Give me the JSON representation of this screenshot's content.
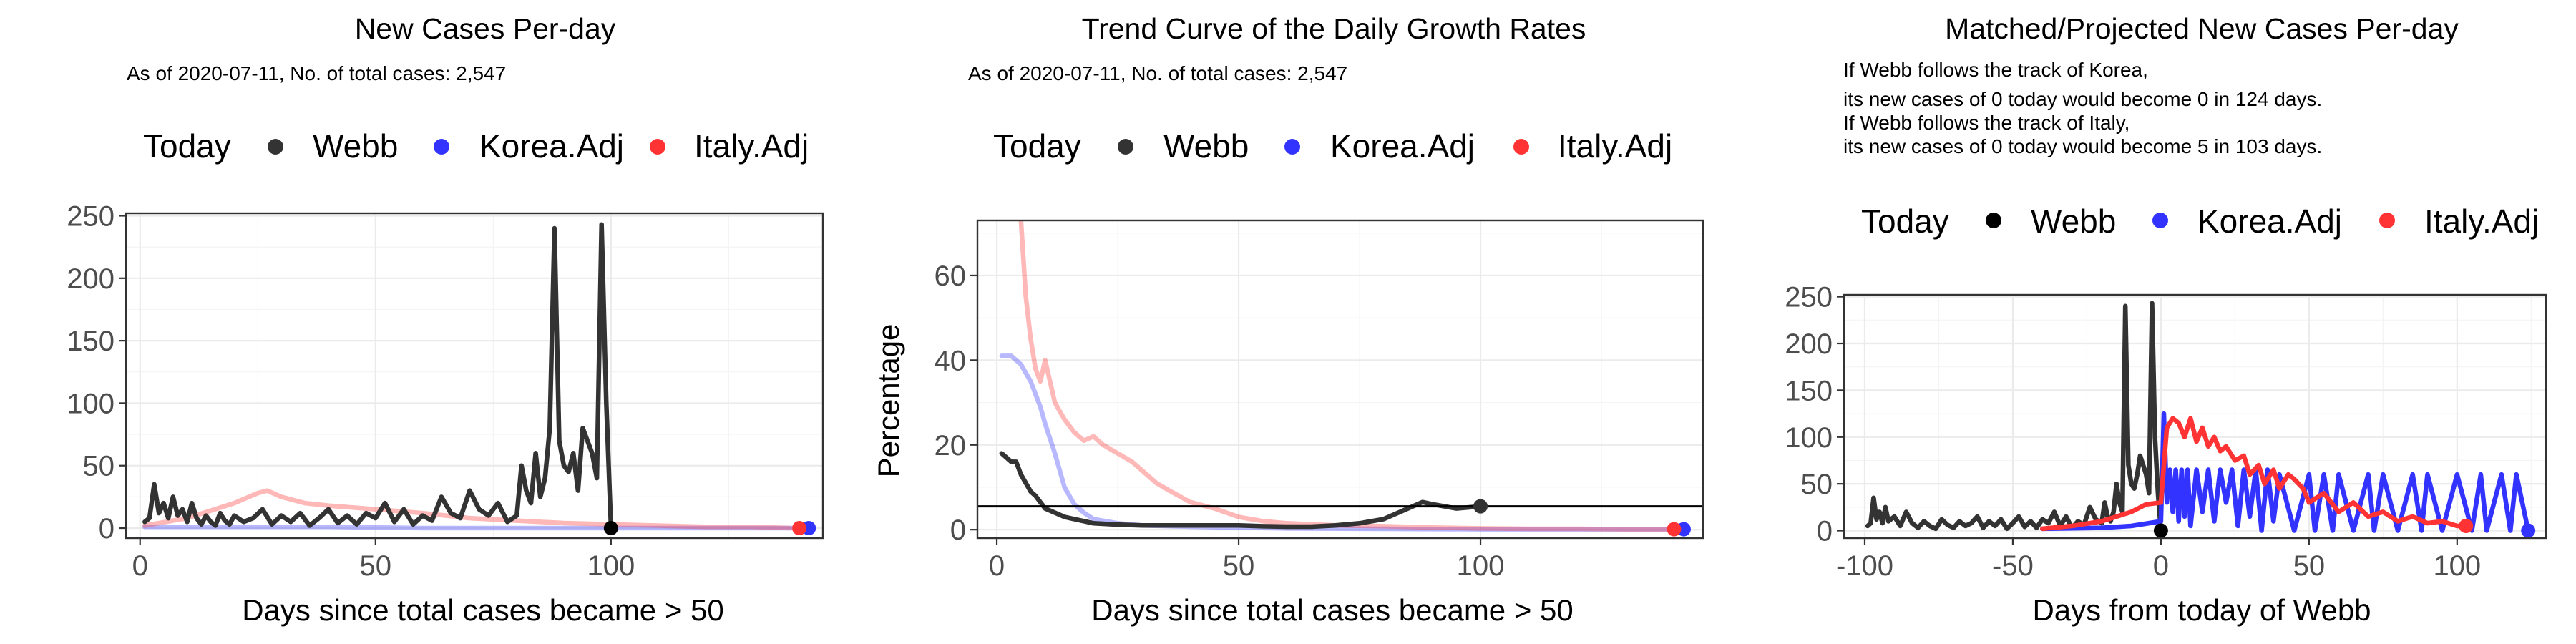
{
  "colors": {
    "webb": "#333333",
    "korea": "#3333ff",
    "italy": "#ff3333",
    "today": "#000000"
  },
  "chart_data": [
    {
      "type": "line",
      "title": "New Cases Per-day",
      "subtitle_lines": [
        "As of 2020-07-11, No. of total cases: 2,547"
      ],
      "legend_title": "Today",
      "legend": [
        "Webb",
        "Korea.Adj",
        "Italy.Adj"
      ],
      "legend_placement": "top",
      "xlabel": "Days since total cases became > 50",
      "ylabel": "",
      "xlim": [
        -3,
        145
      ],
      "ylim": [
        -8,
        252
      ],
      "x_ticks": [
        0,
        50,
        100
      ],
      "y_ticks": [
        0,
        50,
        100,
        150,
        200,
        250
      ],
      "series": [
        {
          "name": "Webb",
          "color": "#333333",
          "x": [
            1,
            2,
            3,
            4,
            5,
            6,
            7,
            8,
            9,
            10,
            11,
            12,
            13,
            14,
            15,
            16,
            17,
            18,
            19,
            20,
            22,
            24,
            26,
            28,
            30,
            32,
            34,
            36,
            38,
            40,
            42,
            44,
            46,
            48,
            50,
            52,
            54,
            56,
            58,
            60,
            62,
            64,
            66,
            68,
            70,
            72,
            74,
            76,
            78,
            80,
            81,
            82,
            83,
            84,
            85,
            86,
            87,
            88,
            89,
            90,
            91,
            92,
            93,
            94,
            95,
            96,
            97,
            98,
            99,
            100
          ],
          "y": [
            5,
            8,
            35,
            12,
            20,
            8,
            25,
            10,
            15,
            5,
            20,
            8,
            3,
            10,
            5,
            2,
            12,
            6,
            3,
            10,
            5,
            8,
            15,
            3,
            10,
            5,
            12,
            2,
            8,
            15,
            4,
            10,
            3,
            12,
            8,
            20,
            5,
            15,
            3,
            10,
            6,
            25,
            12,
            8,
            30,
            15,
            10,
            20,
            5,
            10,
            50,
            30,
            20,
            60,
            25,
            40,
            80,
            240,
            70,
            50,
            45,
            60,
            30,
            80,
            70,
            60,
            40,
            243,
            100,
            0
          ]
        },
        {
          "name": "Korea.Adj",
          "color": "#3333ff",
          "opacity": 0.35,
          "x": [
            1,
            20,
            40,
            60,
            80,
            100,
            120,
            140
          ],
          "y": [
            1,
            1,
            1,
            0,
            0,
            0,
            0,
            0
          ]
        },
        {
          "name": "Italy.Adj",
          "color": "#ff3333",
          "opacity": 0.35,
          "x": [
            1,
            10,
            20,
            25,
            27,
            30,
            35,
            40,
            50,
            60,
            70,
            80,
            90,
            100,
            110,
            120,
            130,
            138
          ],
          "y": [
            2,
            8,
            20,
            28,
            30,
            25,
            20,
            18,
            15,
            12,
            8,
            6,
            4,
            3,
            2,
            1,
            1,
            0
          ]
        }
      ],
      "today_points": [
        {
          "series": "Webb",
          "x": 100,
          "y": 0,
          "color": "#000000"
        },
        {
          "series": "Korea.Adj",
          "x": 142,
          "y": 0,
          "color": "#3333ff"
        },
        {
          "series": "Italy.Adj",
          "x": 140,
          "y": 0,
          "color": "#ff3333"
        }
      ]
    },
    {
      "type": "line",
      "title": "Trend Curve of the Daily Growth Rates",
      "subtitle_lines": [
        "As of 2020-07-11, No. of total cases: 2,547"
      ],
      "legend_title": "Today",
      "legend": [
        "Webb",
        "Korea.Adj",
        "Italy.Adj"
      ],
      "legend_placement": "top",
      "xlabel": "Days since total cases became > 50",
      "ylabel": "Percentage",
      "xlim": [
        -4,
        146
      ],
      "ylim": [
        -2,
        73
      ],
      "x_ticks": [
        0,
        50,
        100
      ],
      "y_ticks": [
        0,
        20,
        40,
        60
      ],
      "hline": 5.5,
      "series": [
        {
          "name": "Webb",
          "color": "#333333",
          "x": [
            1,
            2,
            3,
            4,
            5,
            6,
            7,
            8,
            10,
            12,
            14,
            16,
            18,
            20,
            25,
            30,
            35,
            40,
            45,
            50,
            55,
            60,
            65,
            70,
            75,
            80,
            85,
            88,
            90,
            95,
            100
          ],
          "y": [
            18,
            17,
            16,
            16,
            13,
            11,
            9,
            8,
            5,
            4,
            3,
            2.5,
            2,
            1.5,
            1.2,
            1,
            1,
            1,
            1,
            1,
            0.8,
            0.7,
            0.7,
            1,
            1.5,
            2.5,
            5,
            6.5,
            6,
            5,
            5.5
          ]
        },
        {
          "name": "Korea.Adj",
          "color": "#3333ff",
          "opacity": 0.35,
          "x": [
            1,
            2,
            3,
            4,
            5,
            6,
            7,
            8,
            9,
            10,
            12,
            14,
            16,
            18,
            20,
            25,
            30,
            40,
            50,
            60,
            80,
            100,
            120,
            142
          ],
          "y": [
            41,
            41,
            41,
            40,
            39,
            37,
            35,
            32,
            29,
            25,
            18,
            10,
            6,
            4,
            2.5,
            1.5,
            1,
            0.7,
            0.5,
            0.3,
            0.2,
            0.1,
            0.1,
            0.1
          ]
        },
        {
          "name": "Italy.Adj",
          "color": "#ff3333",
          "opacity": 0.35,
          "x": [
            5,
            6,
            7,
            8,
            9,
            10,
            11,
            12,
            14,
            16,
            18,
            20,
            22,
            25,
            28,
            30,
            33,
            36,
            40,
            45,
            50,
            55,
            60,
            70,
            80,
            90,
            100,
            110,
            120,
            130,
            140
          ],
          "y": [
            73,
            55,
            45,
            38,
            35,
            40,
            35,
            30,
            26,
            23,
            21,
            22,
            20,
            18,
            16,
            14,
            11,
            9,
            6.5,
            5,
            3,
            2,
            1.5,
            1,
            0.8,
            0.5,
            0.3,
            0.2,
            0.2,
            0.1,
            0.1
          ]
        }
      ],
      "today_points": [
        {
          "series": "Webb",
          "x": 100,
          "y": 5.5,
          "color": "#333333"
        },
        {
          "series": "Korea.Adj",
          "x": 142,
          "y": 0.1,
          "color": "#3333ff"
        },
        {
          "series": "Italy.Adj",
          "x": 140,
          "y": 0.1,
          "color": "#ff3333"
        }
      ]
    },
    {
      "type": "line",
      "title": "Matched/Projected New Cases Per-day",
      "subtitle_lines": [
        "If Webb follows the track of Korea,",
        "its new cases of 0 today would become 0 in 124 days.",
        "If Webb follows the track of Italy,",
        "its new cases of 0 today would become 5 in 103 days."
      ],
      "legend_title": "Today",
      "legend": [
        "Webb",
        "Korea.Adj",
        "Italy.Adj"
      ],
      "legend_placement": "top",
      "xlabel": "Days from today of Webb",
      "ylabel": "",
      "xlim": [
        -107,
        130
      ],
      "ylim": [
        -8,
        252
      ],
      "x_ticks": [
        -100,
        -50,
        0,
        50,
        100
      ],
      "y_ticks": [
        0,
        50,
        100,
        150,
        200,
        250
      ],
      "series": [
        {
          "name": "Webb",
          "color": "#333333",
          "x": [
            -99,
            -98,
            -97,
            -96,
            -95,
            -94,
            -93,
            -92,
            -90,
            -88,
            -86,
            -84,
            -82,
            -80,
            -78,
            -76,
            -74,
            -72,
            -70,
            -68,
            -66,
            -64,
            -62,
            -60,
            -58,
            -56,
            -54,
            -52,
            -50,
            -48,
            -46,
            -44,
            -42,
            -40,
            -38,
            -36,
            -34,
            -32,
            -30,
            -28,
            -26,
            -24,
            -22,
            -20,
            -19,
            -18,
            -17,
            -16,
            -15,
            -14,
            -13,
            -12,
            -11,
            -10,
            -9,
            -8,
            -7,
            -6,
            -5,
            -4,
            -3,
            -2,
            -1,
            0
          ],
          "y": [
            5,
            8,
            35,
            12,
            20,
            8,
            25,
            10,
            15,
            5,
            20,
            8,
            3,
            10,
            5,
            2,
            12,
            6,
            3,
            10,
            5,
            8,
            15,
            3,
            10,
            5,
            12,
            2,
            8,
            15,
            4,
            10,
            3,
            12,
            8,
            20,
            5,
            15,
            3,
            10,
            6,
            25,
            12,
            8,
            30,
            15,
            10,
            20,
            50,
            30,
            20,
            240,
            70,
            50,
            45,
            60,
            80,
            70,
            60,
            40,
            243,
            100,
            40,
            0
          ]
        },
        {
          "name": "Korea.Adj",
          "color": "#3333ff",
          "x": [
            -40,
            -20,
            -10,
            0,
            1,
            2,
            3,
            4,
            5,
            6,
            7,
            8,
            9,
            10,
            12,
            14,
            16,
            18,
            20,
            22,
            24,
            26,
            28,
            30,
            32,
            34,
            36,
            38,
            40,
            45,
            50,
            52,
            55,
            58,
            60,
            65,
            70,
            72,
            75,
            80,
            85,
            88,
            90,
            95,
            100,
            105,
            108,
            110,
            115,
            118,
            120,
            124
          ],
          "y": [
            2,
            3,
            5,
            10,
            125,
            30,
            65,
            20,
            65,
            10,
            65,
            15,
            65,
            5,
            65,
            20,
            65,
            10,
            65,
            30,
            65,
            5,
            65,
            15,
            65,
            0,
            65,
            10,
            60,
            0,
            60,
            0,
            60,
            0,
            60,
            0,
            60,
            0,
            60,
            0,
            60,
            0,
            60,
            0,
            60,
            0,
            60,
            0,
            60,
            0,
            60,
            0
          ]
        },
        {
          "name": "Italy.Adj",
          "color": "#ff3333",
          "x": [
            -40,
            -30,
            -20,
            -10,
            -5,
            0,
            2,
            4,
            6,
            8,
            10,
            12,
            14,
            16,
            18,
            20,
            22,
            25,
            28,
            30,
            33,
            35,
            38,
            40,
            43,
            45,
            48,
            50,
            55,
            60,
            65,
            70,
            75,
            80,
            85,
            90,
            95,
            100,
            103
          ],
          "y": [
            2,
            5,
            10,
            20,
            28,
            30,
            110,
            120,
            115,
            100,
            120,
            95,
            110,
            90,
            100,
            85,
            90,
            75,
            80,
            60,
            70,
            50,
            65,
            45,
            60,
            55,
            45,
            30,
            40,
            20,
            30,
            15,
            20,
            10,
            15,
            8,
            10,
            5,
            5
          ]
        }
      ],
      "today_points": [
        {
          "series": "Webb",
          "x": 0,
          "y": 0,
          "color": "#000000"
        },
        {
          "series": "Korea.Adj",
          "x": 124,
          "y": 0,
          "color": "#3333ff"
        },
        {
          "series": "Italy.Adj",
          "x": 103,
          "y": 5,
          "color": "#ff3333"
        }
      ]
    }
  ]
}
